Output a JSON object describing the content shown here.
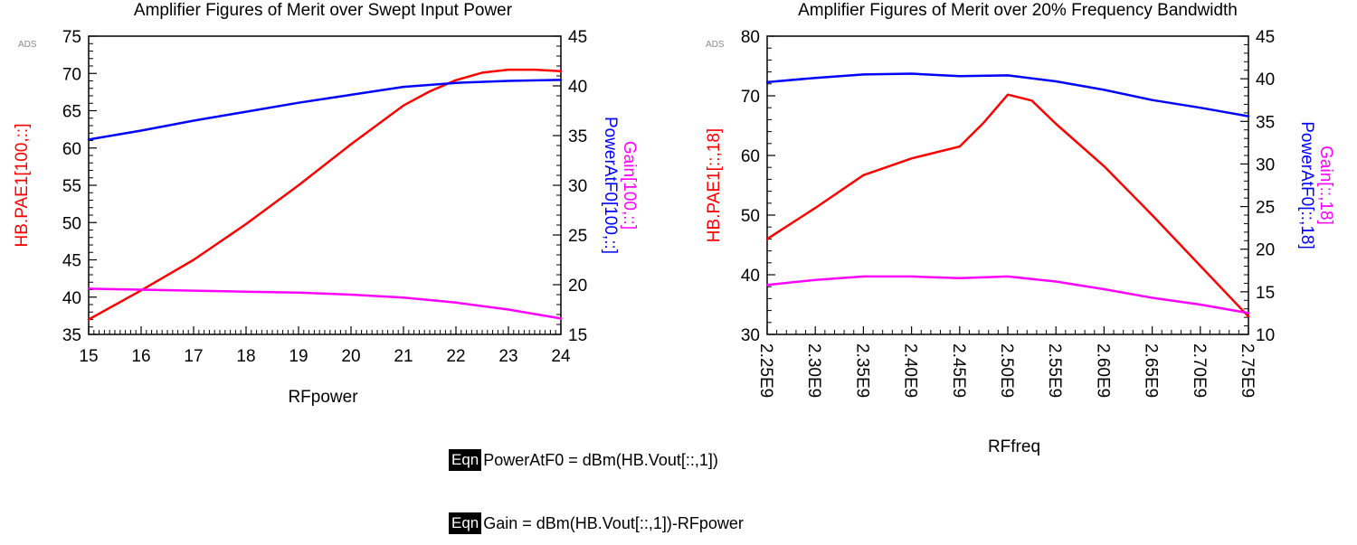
{
  "chart_data": [
    {
      "type": "line",
      "title": "Amplifier Figures of Merit over Swept Input Power",
      "badge": "ADS",
      "xlabel": "RFpower",
      "x_ticks": [
        "15",
        "16",
        "17",
        "18",
        "19",
        "20",
        "21",
        "22",
        "23",
        "24"
      ],
      "xlim": [
        15,
        24
      ],
      "left_axis": {
        "label": "HB.PAE1[100,::]",
        "color": "#ff0000",
        "lim": [
          35,
          75
        ],
        "ticks": [
          "35",
          "40",
          "45",
          "50",
          "55",
          "60",
          "65",
          "70",
          "75"
        ]
      },
      "right_axis": {
        "labels": [
          {
            "text": "Gain[100,::]",
            "color": "#ff00ff"
          },
          {
            "text": "PowerAtF0[100,::]",
            "color": "#0000ff"
          }
        ],
        "lim": [
          15,
          45
        ],
        "ticks": [
          "15",
          "20",
          "25",
          "30",
          "35",
          "40",
          "45"
        ]
      },
      "series": [
        {
          "name": "HB.PAE1[100,::]",
          "axis": "left",
          "color": "#ff0000",
          "x": [
            15,
            16,
            17,
            18,
            19,
            20,
            21,
            21.5,
            22,
            22.5,
            23,
            23.5,
            24
          ],
          "y": [
            37,
            40.9,
            45,
            49.8,
            55,
            60.5,
            65.7,
            67.6,
            69.1,
            70.1,
            70.5,
            70.5,
            70.3
          ]
        },
        {
          "name": "PowerAtF0[100,::]",
          "axis": "right",
          "color": "#0000ff",
          "x": [
            15,
            16,
            17,
            18,
            19,
            20,
            21,
            22,
            23,
            24
          ],
          "y": [
            34.6,
            35.5,
            36.5,
            37.4,
            38.3,
            39.1,
            39.9,
            40.3,
            40.5,
            40.6
          ]
        },
        {
          "name": "Gain[100,::]",
          "axis": "right",
          "color": "#ff00ff",
          "x": [
            15,
            16,
            17,
            18,
            19,
            20,
            21,
            22,
            23,
            24
          ],
          "y": [
            19.6,
            19.5,
            19.4,
            19.3,
            19.2,
            19.0,
            18.7,
            18.2,
            17.5,
            16.6
          ]
        }
      ]
    },
    {
      "type": "line",
      "title": "Amplifier Figures of Merit over 20% Frequency Bandwidth",
      "badge": "ADS",
      "xlabel": "RFfreq",
      "x_ticks": [
        "2.25E9",
        "2.30E9",
        "2.35E9",
        "2.40E9",
        "2.45E9",
        "2.50E9",
        "2.55E9",
        "2.60E9",
        "2.65E9",
        "2.70E9",
        "2.75E9"
      ],
      "xlim": [
        2250000000.0,
        2750000000.0
      ],
      "left_axis": {
        "label": "HB.PAE1[::,18]",
        "color": "#ff0000",
        "lim": [
          30,
          80
        ],
        "ticks": [
          "30",
          "40",
          "50",
          "60",
          "70",
          "80"
        ]
      },
      "right_axis": {
        "labels": [
          {
            "text": "Gain[::,18]",
            "color": "#ff00ff"
          },
          {
            "text": "PowerAtF0[::,18]",
            "color": "#0000ff"
          }
        ],
        "lim": [
          10,
          45
        ],
        "ticks": [
          "10",
          "15",
          "20",
          "25",
          "30",
          "35",
          "40",
          "45"
        ]
      },
      "series": [
        {
          "name": "HB.PAE1[::,18]",
          "axis": "left",
          "color": "#ff0000",
          "x": [
            2250000000.0,
            2300000000.0,
            2350000000.0,
            2400000000.0,
            2450000000.0,
            2475000000.0,
            2500000000.0,
            2525000000.0,
            2550000000.0,
            2600000000.0,
            2650000000.0,
            2700000000.0,
            2750000000.0
          ],
          "y": [
            46,
            51.2,
            56.7,
            59.5,
            61.5,
            65.5,
            70.2,
            69.2,
            65.3,
            58.2,
            50,
            41.5,
            33
          ]
        },
        {
          "name": "PowerAtF0[::,18]",
          "axis": "right",
          "color": "#0000ff",
          "x": [
            2250000000.0,
            2300000000.0,
            2350000000.0,
            2400000000.0,
            2450000000.0,
            2500000000.0,
            2550000000.0,
            2600000000.0,
            2650000000.0,
            2700000000.0,
            2750000000.0
          ],
          "y": [
            39.6,
            40.1,
            40.5,
            40.6,
            40.3,
            40.4,
            39.7,
            38.7,
            37.5,
            36.6,
            35.6
          ]
        },
        {
          "name": "Gain[::,18]",
          "axis": "right",
          "color": "#ff00ff",
          "x": [
            2250000000.0,
            2300000000.0,
            2350000000.0,
            2400000000.0,
            2450000000.0,
            2500000000.0,
            2550000000.0,
            2600000000.0,
            2650000000.0,
            2700000000.0,
            2750000000.0
          ],
          "y": [
            15.8,
            16.4,
            16.8,
            16.8,
            16.6,
            16.8,
            16.2,
            15.3,
            14.3,
            13.5,
            12.5
          ]
        }
      ]
    }
  ],
  "equations": [
    {
      "tag": "Eqn",
      "text": "PowerAtF0 = dBm(HB.Vout[::,1])"
    },
    {
      "tag": "Eqn",
      "text": "Gain = dBm(HB.Vout[::,1])-RFpower"
    }
  ]
}
